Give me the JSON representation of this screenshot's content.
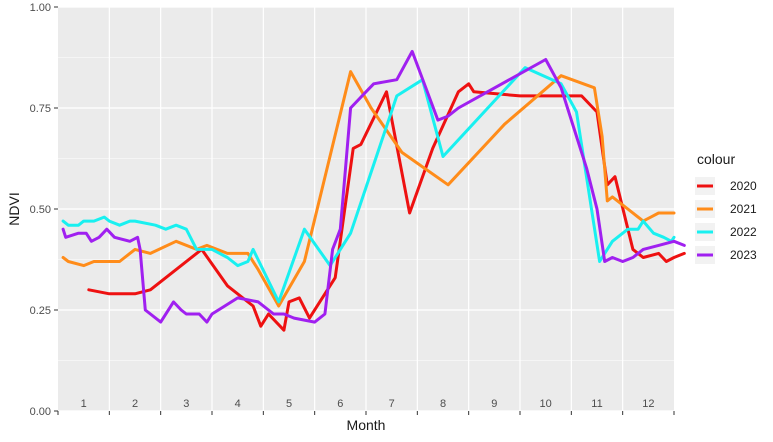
{
  "chart_data": {
    "type": "line",
    "title": "",
    "xlabel": "Month",
    "ylabel": "NDVI",
    "ylim": [
      0,
      1
    ],
    "xlim": [
      0.5,
      12.5
    ],
    "yticks": [
      0,
      0.25,
      0.5,
      0.75,
      1
    ],
    "ytick_labels": [
      "0.00",
      "0.25",
      "0.50",
      "0.75",
      "1.00"
    ],
    "xtick_labels": [
      "1",
      "2",
      "3",
      "4",
      "5",
      "6",
      "7",
      "8",
      "9",
      "10",
      "11",
      "12"
    ],
    "grid": true,
    "legend": {
      "title": "colour",
      "position": "right"
    },
    "series": [
      {
        "name": "2020",
        "color": "#ee1111",
        "points": [
          [
            1.1,
            0.3
          ],
          [
            1.5,
            0.29
          ],
          [
            2.0,
            0.29
          ],
          [
            2.3,
            0.3
          ],
          [
            3.3,
            0.4
          ],
          [
            3.8,
            0.31
          ],
          [
            4.3,
            0.26
          ],
          [
            4.45,
            0.21
          ],
          [
            4.6,
            0.24
          ],
          [
            4.9,
            0.2
          ],
          [
            5.0,
            0.27
          ],
          [
            5.2,
            0.28
          ],
          [
            5.4,
            0.23
          ],
          [
            5.9,
            0.33
          ],
          [
            6.25,
            0.65
          ],
          [
            6.4,
            0.66
          ],
          [
            6.9,
            0.79
          ],
          [
            7.35,
            0.49
          ],
          [
            7.8,
            0.65
          ],
          [
            8.3,
            0.79
          ],
          [
            8.5,
            0.81
          ],
          [
            8.6,
            0.79
          ],
          [
            9.5,
            0.78
          ],
          [
            10.3,
            0.78
          ],
          [
            10.7,
            0.78
          ],
          [
            11.0,
            0.74
          ],
          [
            11.2,
            0.56
          ],
          [
            11.35,
            0.58
          ],
          [
            11.7,
            0.4
          ],
          [
            11.9,
            0.38
          ],
          [
            12.2,
            0.39
          ],
          [
            12.35,
            0.37
          ],
          [
            12.5,
            0.38
          ],
          [
            12.7,
            0.39
          ]
        ]
      },
      {
        "name": "2021",
        "color": "#ff8c1a",
        "points": [
          [
            0.6,
            0.38
          ],
          [
            0.7,
            0.37
          ],
          [
            1.0,
            0.36
          ],
          [
            1.2,
            0.37
          ],
          [
            1.35,
            0.37
          ],
          [
            1.5,
            0.37
          ],
          [
            1.7,
            0.37
          ],
          [
            2.0,
            0.4
          ],
          [
            2.3,
            0.39
          ],
          [
            2.8,
            0.42
          ],
          [
            3.2,
            0.4
          ],
          [
            3.4,
            0.41
          ],
          [
            3.8,
            0.39
          ],
          [
            4.2,
            0.39
          ],
          [
            4.4,
            0.35
          ],
          [
            4.8,
            0.26
          ],
          [
            5.3,
            0.37
          ],
          [
            5.55,
            0.5
          ],
          [
            6.2,
            0.84
          ],
          [
            6.6,
            0.75
          ],
          [
            7.2,
            0.64
          ],
          [
            8.1,
            0.56
          ],
          [
            9.2,
            0.71
          ],
          [
            10.3,
            0.83
          ],
          [
            10.95,
            0.8
          ],
          [
            11.1,
            0.68
          ],
          [
            11.2,
            0.52
          ],
          [
            11.3,
            0.53
          ],
          [
            11.4,
            0.52
          ],
          [
            11.6,
            0.5
          ],
          [
            11.9,
            0.47
          ],
          [
            12.05,
            0.48
          ],
          [
            12.2,
            0.49
          ],
          [
            12.5,
            0.49
          ]
        ]
      },
      {
        "name": "2022",
        "color": "#19f0f0",
        "points": [
          [
            0.6,
            0.47
          ],
          [
            0.7,
            0.46
          ],
          [
            0.9,
            0.46
          ],
          [
            1.0,
            0.47
          ],
          [
            1.2,
            0.47
          ],
          [
            1.4,
            0.48
          ],
          [
            1.5,
            0.47
          ],
          [
            1.7,
            0.46
          ],
          [
            1.9,
            0.47
          ],
          [
            2.0,
            0.47
          ],
          [
            2.4,
            0.46
          ],
          [
            2.6,
            0.45
          ],
          [
            2.8,
            0.46
          ],
          [
            3.0,
            0.45
          ],
          [
            3.2,
            0.4
          ],
          [
            3.5,
            0.4
          ],
          [
            3.8,
            0.38
          ],
          [
            4.0,
            0.36
          ],
          [
            4.2,
            0.37
          ],
          [
            4.3,
            0.4
          ],
          [
            4.8,
            0.27
          ],
          [
            5.3,
            0.45
          ],
          [
            5.8,
            0.36
          ],
          [
            6.2,
            0.44
          ],
          [
            7.1,
            0.78
          ],
          [
            7.6,
            0.82
          ],
          [
            8.0,
            0.63
          ],
          [
            9.6,
            0.85
          ],
          [
            10.3,
            0.81
          ],
          [
            10.6,
            0.74
          ],
          [
            11.05,
            0.37
          ],
          [
            11.3,
            0.42
          ],
          [
            11.6,
            0.45
          ],
          [
            11.8,
            0.45
          ],
          [
            11.9,
            0.47
          ],
          [
            12.1,
            0.44
          ],
          [
            12.3,
            0.43
          ],
          [
            12.45,
            0.42
          ],
          [
            12.5,
            0.43
          ]
        ]
      },
      {
        "name": "2023",
        "color": "#a020f0",
        "points": [
          [
            0.6,
            0.45
          ],
          [
            0.65,
            0.43
          ],
          [
            0.9,
            0.44
          ],
          [
            1.05,
            0.44
          ],
          [
            1.15,
            0.42
          ],
          [
            1.3,
            0.43
          ],
          [
            1.45,
            0.45
          ],
          [
            1.6,
            0.43
          ],
          [
            1.9,
            0.42
          ],
          [
            2.05,
            0.43
          ],
          [
            2.1,
            0.4
          ],
          [
            2.2,
            0.25
          ],
          [
            2.5,
            0.22
          ],
          [
            2.75,
            0.27
          ],
          [
            2.9,
            0.25
          ],
          [
            3.0,
            0.24
          ],
          [
            3.25,
            0.24
          ],
          [
            3.4,
            0.22
          ],
          [
            3.5,
            0.24
          ],
          [
            3.75,
            0.26
          ],
          [
            4.0,
            0.28
          ],
          [
            4.4,
            0.27
          ],
          [
            4.7,
            0.24
          ],
          [
            4.9,
            0.24
          ],
          [
            5.1,
            0.23
          ],
          [
            5.5,
            0.22
          ],
          [
            5.7,
            0.24
          ],
          [
            5.85,
            0.4
          ],
          [
            6.0,
            0.45
          ],
          [
            6.1,
            0.6
          ],
          [
            6.2,
            0.75
          ],
          [
            6.5,
            0.79
          ],
          [
            6.65,
            0.81
          ],
          [
            7.1,
            0.82
          ],
          [
            7.4,
            0.89
          ],
          [
            7.9,
            0.72
          ],
          [
            8.1,
            0.73
          ],
          [
            8.3,
            0.75
          ],
          [
            10.0,
            0.87
          ],
          [
            10.3,
            0.8
          ],
          [
            10.8,
            0.6
          ],
          [
            11.0,
            0.5
          ],
          [
            11.15,
            0.37
          ],
          [
            11.3,
            0.38
          ],
          [
            11.5,
            0.37
          ],
          [
            11.7,
            0.38
          ],
          [
            11.9,
            0.4
          ],
          [
            12.2,
            0.41
          ],
          [
            12.5,
            0.42
          ],
          [
            12.7,
            0.41
          ]
        ]
      }
    ]
  }
}
